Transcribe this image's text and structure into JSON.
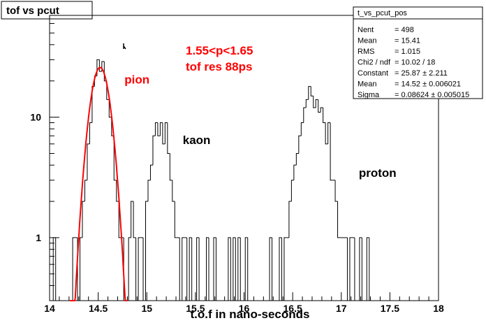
{
  "canvas_title": "tof vs pcut",
  "annotations": {
    "momentum_cut": "1.55<p<1.65",
    "resolution": "tof res 88ps"
  },
  "stats_box": {
    "name": "t_vs_pcut_pos",
    "rows": [
      {
        "label": "Nent",
        "value": "= 498"
      },
      {
        "label": "Mean",
        "value": "=  15.41"
      },
      {
        "label": "RMS",
        "value": "=  1.015"
      },
      {
        "label": "Chi2 / ndf",
        "value": "= 10.02 / 18"
      },
      {
        "label": "Constant",
        "value": "= 25.87 ± 2.211"
      },
      {
        "label": "Mean",
        "value": "= 14.52 ± 0.006021"
      },
      {
        "label": "Sigma",
        "value": "= 0.08624 ± 0.005015"
      }
    ]
  },
  "colors": {
    "histogram": "#000000",
    "fit": "#ff0000",
    "annotation": "#ff0000",
    "frame": "#000000"
  },
  "chart_data": {
    "type": "histogram",
    "xlabel": "t.o.f in nano-seconds",
    "xlim": [
      14,
      18
    ],
    "ylim": [
      0.3,
      70
    ],
    "y_scale": "log",
    "x_ticks": [
      "14",
      "14.5",
      "15",
      "15.5",
      "16",
      "16.5",
      "17",
      "17.5",
      "18"
    ],
    "y_ticks": [
      "1",
      "10"
    ],
    "bin_width": 0.025,
    "bins": [
      {
        "x": 14.05,
        "y": 1
      },
      {
        "x": 14.075,
        "y": 0
      },
      {
        "x": 14.1,
        "y": 0
      },
      {
        "x": 14.125,
        "y": 0
      },
      {
        "x": 14.15,
        "y": 0
      },
      {
        "x": 14.175,
        "y": 0
      },
      {
        "x": 14.2,
        "y": 0
      },
      {
        "x": 14.225,
        "y": 0
      },
      {
        "x": 14.25,
        "y": 1
      },
      {
        "x": 14.275,
        "y": 1
      },
      {
        "x": 14.3,
        "y": 0
      },
      {
        "x": 14.325,
        "y": 1
      },
      {
        "x": 14.35,
        "y": 2
      },
      {
        "x": 14.375,
        "y": 3
      },
      {
        "x": 14.4,
        "y": 6
      },
      {
        "x": 14.425,
        "y": 9
      },
      {
        "x": 14.45,
        "y": 18
      },
      {
        "x": 14.475,
        "y": 22
      },
      {
        "x": 14.5,
        "y": 30
      },
      {
        "x": 14.525,
        "y": 24
      },
      {
        "x": 14.55,
        "y": 29
      },
      {
        "x": 14.575,
        "y": 20
      },
      {
        "x": 14.6,
        "y": 14
      },
      {
        "x": 14.625,
        "y": 10
      },
      {
        "x": 14.65,
        "y": 7
      },
      {
        "x": 14.675,
        "y": 3
      },
      {
        "x": 14.7,
        "y": 2
      },
      {
        "x": 14.725,
        "y": 1
      },
      {
        "x": 14.75,
        "y": 1
      },
      {
        "x": 14.775,
        "y": 0
      },
      {
        "x": 14.8,
        "y": 0
      },
      {
        "x": 14.825,
        "y": 1
      },
      {
        "x": 14.85,
        "y": 2
      },
      {
        "x": 14.875,
        "y": 1
      },
      {
        "x": 14.9,
        "y": 0
      },
      {
        "x": 14.925,
        "y": 1
      },
      {
        "x": 14.95,
        "y": 1
      },
      {
        "x": 14.975,
        "y": 0
      },
      {
        "x": 15.0,
        "y": 2
      },
      {
        "x": 15.025,
        "y": 3
      },
      {
        "x": 15.05,
        "y": 4
      },
      {
        "x": 15.075,
        "y": 7
      },
      {
        "x": 15.1,
        "y": 9
      },
      {
        "x": 15.125,
        "y": 7
      },
      {
        "x": 15.15,
        "y": 9
      },
      {
        "x": 15.175,
        "y": 6
      },
      {
        "x": 15.2,
        "y": 9
      },
      {
        "x": 15.225,
        "y": 5
      },
      {
        "x": 15.25,
        "y": 3
      },
      {
        "x": 15.275,
        "y": 2
      },
      {
        "x": 15.3,
        "y": 1
      },
      {
        "x": 15.325,
        "y": 1
      },
      {
        "x": 15.35,
        "y": 0
      },
      {
        "x": 15.375,
        "y": 1
      },
      {
        "x": 15.4,
        "y": 1
      },
      {
        "x": 15.425,
        "y": 0
      },
      {
        "x": 15.45,
        "y": 1
      },
      {
        "x": 15.475,
        "y": 0
      },
      {
        "x": 15.5,
        "y": 0
      },
      {
        "x": 15.525,
        "y": 1
      },
      {
        "x": 15.55,
        "y": 0
      },
      {
        "x": 15.575,
        "y": 0
      },
      {
        "x": 15.6,
        "y": 0
      },
      {
        "x": 15.625,
        "y": 1
      },
      {
        "x": 15.65,
        "y": 0
      },
      {
        "x": 15.675,
        "y": 0
      },
      {
        "x": 15.7,
        "y": 1
      },
      {
        "x": 15.725,
        "y": 0
      },
      {
        "x": 15.75,
        "y": 0
      },
      {
        "x": 15.775,
        "y": 0
      },
      {
        "x": 15.8,
        "y": 0
      },
      {
        "x": 15.825,
        "y": 0
      },
      {
        "x": 15.85,
        "y": 1
      },
      {
        "x": 15.875,
        "y": 0
      },
      {
        "x": 15.9,
        "y": 1
      },
      {
        "x": 15.925,
        "y": 0
      },
      {
        "x": 15.95,
        "y": 1
      },
      {
        "x": 15.975,
        "y": 0
      },
      {
        "x": 16.0,
        "y": 0
      },
      {
        "x": 16.025,
        "y": 1
      },
      {
        "x": 16.05,
        "y": 0
      },
      {
        "x": 16.075,
        "y": 0
      },
      {
        "x": 16.1,
        "y": 0
      },
      {
        "x": 16.125,
        "y": 0
      },
      {
        "x": 16.15,
        "y": 0
      },
      {
        "x": 16.175,
        "y": 0
      },
      {
        "x": 16.2,
        "y": 0
      },
      {
        "x": 16.225,
        "y": 0
      },
      {
        "x": 16.25,
        "y": 0
      },
      {
        "x": 16.275,
        "y": 1
      },
      {
        "x": 16.3,
        "y": 0
      },
      {
        "x": 16.325,
        "y": 0
      },
      {
        "x": 16.35,
        "y": 0
      },
      {
        "x": 16.375,
        "y": 1
      },
      {
        "x": 16.4,
        "y": 0
      },
      {
        "x": 16.425,
        "y": 1
      },
      {
        "x": 16.45,
        "y": 1
      },
      {
        "x": 16.475,
        "y": 2
      },
      {
        "x": 16.5,
        "y": 3
      },
      {
        "x": 16.525,
        "y": 4
      },
      {
        "x": 16.55,
        "y": 5
      },
      {
        "x": 16.575,
        "y": 7
      },
      {
        "x": 16.6,
        "y": 9
      },
      {
        "x": 16.625,
        "y": 12
      },
      {
        "x": 16.65,
        "y": 14
      },
      {
        "x": 16.675,
        "y": 18
      },
      {
        "x": 16.7,
        "y": 15
      },
      {
        "x": 16.725,
        "y": 12
      },
      {
        "x": 16.75,
        "y": 14
      },
      {
        "x": 16.775,
        "y": 11
      },
      {
        "x": 16.8,
        "y": 12
      },
      {
        "x": 16.825,
        "y": 9
      },
      {
        "x": 16.85,
        "y": 6
      },
      {
        "x": 16.875,
        "y": 9
      },
      {
        "x": 16.9,
        "y": 3
      },
      {
        "x": 16.925,
        "y": 3
      },
      {
        "x": 16.95,
        "y": 2
      },
      {
        "x": 16.975,
        "y": 1
      },
      {
        "x": 17.0,
        "y": 1
      },
      {
        "x": 17.025,
        "y": 1
      },
      {
        "x": 17.05,
        "y": 1
      },
      {
        "x": 17.075,
        "y": 0
      },
      {
        "x": 17.1,
        "y": 1
      },
      {
        "x": 17.125,
        "y": 1
      },
      {
        "x": 17.15,
        "y": 0
      },
      {
        "x": 17.175,
        "y": 0
      },
      {
        "x": 17.2,
        "y": 1
      },
      {
        "x": 17.225,
        "y": 0
      },
      {
        "x": 17.25,
        "y": 0
      },
      {
        "x": 17.275,
        "y": 1
      },
      {
        "x": 17.3,
        "y": 0
      }
    ],
    "peak_labels": [
      {
        "text": "pion",
        "x": 14.77,
        "y": 19,
        "color": "#ff0000"
      },
      {
        "text": "kaon",
        "x": 15.37,
        "y": 6,
        "color": "#000000"
      },
      {
        "text": "proton",
        "x": 17.18,
        "y": 3.2,
        "color": "#000000"
      }
    ],
    "fit": {
      "function": "gaus",
      "constant": 25.87,
      "mean": 14.52,
      "sigma": 0.08624,
      "range": [
        14.21,
        14.8
      ]
    }
  }
}
